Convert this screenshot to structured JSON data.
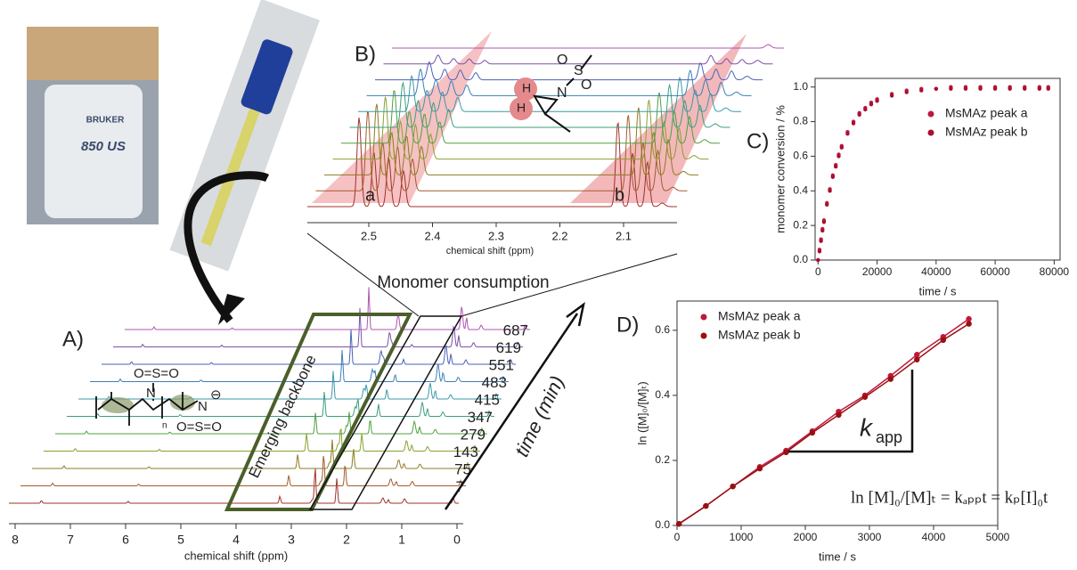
{
  "chart_data": [
    {
      "type": "scatter",
      "label": "C)",
      "xlabel": "time / s",
      "ylabel": "monomer conversion / %",
      "x": [
        0,
        500,
        1000,
        1500,
        2000,
        3000,
        4000,
        5000,
        6000,
        7000,
        8000,
        10000,
        12000,
        14000,
        16000,
        18000,
        20000,
        25000,
        30000,
        35000,
        40000,
        45000,
        50000,
        55000,
        60000,
        65000,
        70000,
        75000,
        78000
      ],
      "series": [
        {
          "name": "MsMAz peak a",
          "color": "#c0173f",
          "values": [
            0,
            0.06,
            0.12,
            0.18,
            0.23,
            0.33,
            0.41,
            0.49,
            0.55,
            0.61,
            0.66,
            0.74,
            0.8,
            0.85,
            0.88,
            0.91,
            0.93,
            0.96,
            0.98,
            0.99,
            0.99,
            1.0,
            1.0,
            1.0,
            1.0,
            1.0,
            1.0,
            1.0,
            1.0
          ]
        },
        {
          "name": "MsMAz peak b",
          "color": "#a8102f",
          "values": [
            0,
            0.05,
            0.11,
            0.17,
            0.22,
            0.32,
            0.4,
            0.48,
            0.54,
            0.6,
            0.65,
            0.73,
            0.79,
            0.84,
            0.87,
            0.9,
            0.92,
            0.95,
            0.97,
            0.98,
            0.99,
            0.99,
            0.99,
            0.99,
            0.99,
            0.99,
            0.99,
            0.99,
            0.99
          ]
        }
      ],
      "xlim": [
        -1000,
        82000
      ],
      "ylim": [
        0,
        1.05
      ],
      "xticks": [
        0,
        20000,
        40000,
        60000,
        80000
      ],
      "yticks": [
        {
          "value": 0,
          "label": "0.0"
        },
        {
          "value": 0.2,
          "label": "0.2"
        },
        {
          "value": 0.4,
          "label": "0.4"
        },
        {
          "value": 0.6,
          "label": "0.6"
        },
        {
          "value": 0.8,
          "label": "0.8"
        },
        {
          "value": 1.0,
          "label": "1.0"
        }
      ],
      "legend": "upper right"
    },
    {
      "type": "line",
      "label": "D)",
      "xlabel": "time / s",
      "ylabel": "ln ([M]₀/[M]ₜ)",
      "x": [
        30,
        450,
        870,
        1290,
        1700,
        2110,
        2520,
        2930,
        3330,
        3740,
        4150,
        4550
      ],
      "series": [
        {
          "name": "MsMAz peak a",
          "color": "#c0173f",
          "values": [
            0.005,
            0.06,
            0.12,
            0.18,
            0.23,
            0.29,
            0.35,
            0.4,
            0.46,
            0.525,
            0.58,
            0.635
          ]
        },
        {
          "name": "MsMAz peak b",
          "color": "#9a1010",
          "values": [
            0.005,
            0.06,
            0.12,
            0.175,
            0.225,
            0.285,
            0.34,
            0.395,
            0.45,
            0.51,
            0.57,
            0.62
          ]
        }
      ],
      "xlim": [
        0,
        5000
      ],
      "ylim": [
        0,
        0.69
      ],
      "xticks": [
        0,
        1000,
        2000,
        3000,
        4000,
        5000
      ],
      "yticks": [
        {
          "value": 0,
          "label": "0.0"
        },
        {
          "value": 0.2,
          "label": "0.2"
        },
        {
          "value": 0.4,
          "label": "0.4"
        },
        {
          "value": 0.6,
          "label": "0.6"
        }
      ],
      "legend": "upper left",
      "annotation": "k",
      "annotation_sub": "app",
      "equation": "ln [M]₀/[M]ₜ = kₐₚₚt = kₚ[I]₀t"
    }
  ],
  "panels": {
    "photo": {
      "brand": "BRUKER",
      "model": "850 US"
    },
    "A": {
      "label": "A)",
      "xlabel": "chemical shift (ppm)",
      "xticks": [
        8,
        7,
        6,
        5,
        4,
        3,
        2,
        1,
        0
      ],
      "time_labels": [
        7,
        75,
        143,
        279,
        347,
        415,
        483,
        551,
        619,
        687
      ],
      "time_axis": "time (min)",
      "annotation_top": "Monomer consumption",
      "annotation_box": "Emerging backbone",
      "molecule": [
        "O=S=O",
        "N",
        "n",
        "N",
        "⊖",
        "O=S=O"
      ]
    },
    "B": {
      "label": "B)",
      "xlabel": "chemical shift (ppm)",
      "xticks": [
        2.5,
        2.4,
        2.3,
        2.2,
        2.1
      ],
      "peak_labels": [
        "a",
        "b"
      ],
      "molecule": [
        "O",
        "S",
        "O",
        "N",
        "H",
        "H"
      ]
    }
  }
}
